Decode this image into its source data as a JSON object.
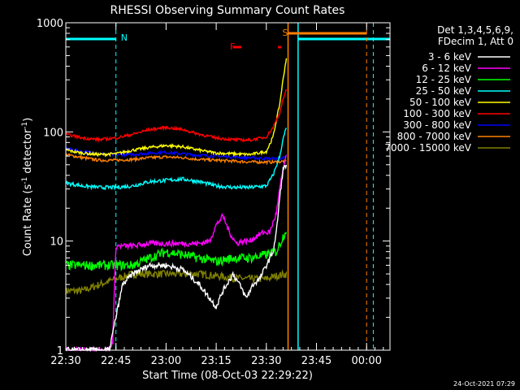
{
  "chart_data": {
    "type": "line",
    "title": "RHESSI Observing Summary Count Rates",
    "xlabel": "Start Time (08-Oct-03 22:29:22)",
    "ylabel_main": "Count Rate (s",
    "ylabel_sup1": "-1",
    "ylabel_mid": " detector",
    "ylabel_sup2": "-1",
    "ylabel_end": ")",
    "yscale": "log",
    "ylim": [
      1,
      1000
    ],
    "xlim_minutes": [
      0,
      97
    ],
    "x_ticks": [
      {
        "label": "22:30",
        "m": 0
      },
      {
        "label": "22:45",
        "m": 15
      },
      {
        "label": "23:00",
        "m": 30
      },
      {
        "label": "23:15",
        "m": 45
      },
      {
        "label": "23:30",
        "m": 60
      },
      {
        "label": "23:45",
        "m": 75
      },
      {
        "label": "00:00",
        "m": 90
      }
    ],
    "y_ticks": [
      {
        "label": "1",
        "v": 1
      },
      {
        "label": "10",
        "v": 10
      },
      {
        "label": "100",
        "v": 100
      },
      {
        "label": "1000",
        "v": 1000
      }
    ],
    "legend_header": [
      "Det 1,3,4,5,6,9,",
      "FDecim 1, Att 0"
    ],
    "series": [
      {
        "name": "3 - 6 keV",
        "color": "#ffffff",
        "x": [
          0,
          10,
          13,
          15,
          17,
          20,
          25,
          30,
          35,
          40,
          43,
          45,
          47,
          50,
          52,
          54,
          56,
          58,
          60,
          62,
          63,
          64,
          65,
          66
        ],
        "y": [
          1,
          1,
          1,
          2,
          4,
          5,
          6,
          6,
          5.5,
          4,
          3,
          2.5,
          3.5,
          5,
          4,
          3,
          4,
          4.5,
          6,
          8,
          12,
          25,
          45,
          50
        ]
      },
      {
        "name": "6 - 12 keV",
        "color": "#ff00ff",
        "x": [
          0,
          5,
          10,
          13,
          14,
          15,
          20,
          25,
          30,
          35,
          40,
          43,
          45,
          47,
          49,
          51,
          53,
          55,
          57,
          59,
          61,
          63,
          64,
          65,
          66
        ],
        "y": [
          1,
          1,
          1,
          1,
          1.2,
          9,
          9,
          9.5,
          9.5,
          9.5,
          9.5,
          10,
          14,
          17,
          12,
          9.5,
          10,
          10,
          11,
          12,
          12,
          18,
          30,
          45,
          60
        ]
      },
      {
        "name": "12 - 25 keV",
        "color": "#00ff00",
        "x": [
          0,
          5,
          10,
          15,
          20,
          25,
          30,
          35,
          40,
          45,
          50,
          55,
          60,
          63,
          65,
          66
        ],
        "y": [
          6,
          6,
          6,
          6,
          6,
          7,
          8,
          7.5,
          7,
          6.5,
          7,
          7,
          7.5,
          8,
          11,
          13
        ]
      },
      {
        "name": "25 - 50 keV",
        "color": "#00ffff",
        "x": [
          0,
          5,
          10,
          15,
          20,
          25,
          30,
          35,
          40,
          45,
          50,
          55,
          60,
          62,
          64,
          65,
          66
        ],
        "y": [
          34,
          32,
          31,
          31,
          32,
          35,
          36,
          37,
          35,
          32,
          31,
          31,
          32,
          40,
          60,
          85,
          110
        ]
      },
      {
        "name": "50 - 100 keV",
        "color": "#ffff00",
        "x": [
          0,
          5,
          10,
          15,
          20,
          25,
          30,
          35,
          40,
          45,
          50,
          55,
          60,
          62,
          64,
          65,
          66
        ],
        "y": [
          68,
          64,
          62,
          63,
          68,
          72,
          75,
          73,
          68,
          64,
          63,
          62,
          66,
          90,
          180,
          300,
          480
        ]
      },
      {
        "name": "100 - 300 keV",
        "color": "#ff0000",
        "x": [
          0,
          5,
          10,
          15,
          20,
          25,
          30,
          35,
          40,
          45,
          50,
          55,
          60,
          62,
          64,
          65,
          66
        ],
        "y": [
          95,
          88,
          85,
          88,
          95,
          105,
          110,
          105,
          95,
          88,
          85,
          84,
          90,
          110,
          150,
          200,
          240
        ]
      },
      {
        "name": "300 - 800 keV",
        "color": "#0000ff",
        "x": [
          0,
          5,
          10,
          15,
          20,
          25,
          30,
          35,
          40,
          45,
          50,
          55,
          60,
          63,
          66
        ],
        "y": [
          70,
          66,
          63,
          62,
          62,
          64,
          65,
          63,
          61,
          60,
          59,
          58,
          57,
          57,
          58
        ]
      },
      {
        "name": "800 - 7000 keV",
        "color": "#ff8000",
        "x": [
          0,
          5,
          10,
          15,
          20,
          25,
          30,
          35,
          40,
          45,
          50,
          55,
          60,
          63,
          66
        ],
        "y": [
          62,
          58,
          55,
          55,
          56,
          58,
          59,
          58,
          56,
          55,
          54,
          53,
          53,
          53,
          54
        ]
      },
      {
        "name": "7000 - 15000 keV",
        "color": "#808000",
        "x": [
          0,
          5,
          10,
          15,
          20,
          25,
          30,
          35,
          40,
          45,
          50,
          55,
          60,
          63,
          66
        ],
        "y": [
          3.5,
          3.5,
          4,
          4.5,
          5,
          5,
          5,
          5,
          5,
          4.8,
          4.6,
          4.5,
          4.5,
          4.8,
          5
        ]
      }
    ],
    "annotations": [
      {
        "text": "N",
        "color": "#00ffff",
        "m": 15
      },
      {
        "text": "F",
        "color": "#ff0000",
        "m": 52
      },
      {
        "text": "S",
        "color": "#ff8000",
        "m": 65
      }
    ],
    "timestamp": "24-Oct-2021 07:29"
  }
}
